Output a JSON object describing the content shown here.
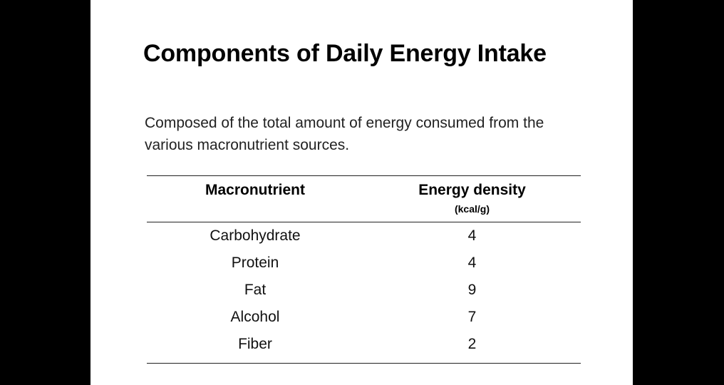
{
  "slide": {
    "title": "Components of Daily Energy Intake",
    "subtitle": "Composed of the total amount of energy consumed from the various macronutrient sources."
  },
  "table": {
    "headers": {
      "col1": "Macronutrient",
      "col2": "Energy density",
      "col2_unit": "(kcal/g)"
    },
    "rows": [
      {
        "macronutrient": "Carbohydrate",
        "energy_density": "4"
      },
      {
        "macronutrient": "Protein",
        "energy_density": "4"
      },
      {
        "macronutrient": "Fat",
        "energy_density": "9"
      },
      {
        "macronutrient": "Alcohol",
        "energy_density": "7"
      },
      {
        "macronutrient": "Fiber",
        "energy_density": "2"
      }
    ]
  }
}
